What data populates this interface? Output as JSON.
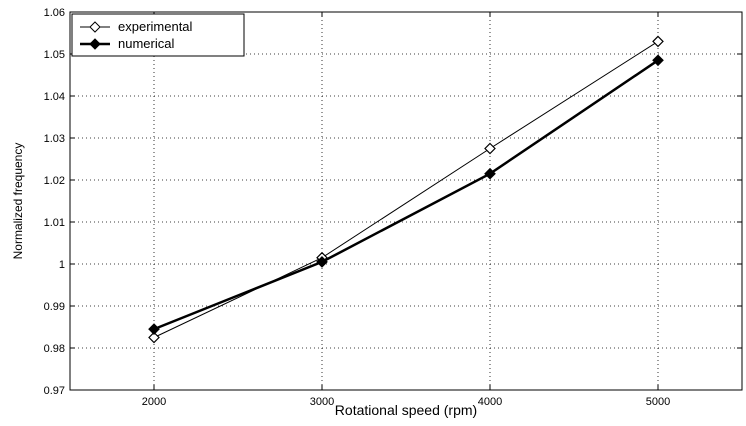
{
  "chart_data": {
    "type": "line",
    "title": "",
    "xlabel": "Rotational speed (rpm)",
    "ylabel": "Normalized frequency",
    "xlim": [
      1500,
      5500
    ],
    "ylim": [
      0.97,
      1.06
    ],
    "x_ticks": [
      2000,
      3000,
      4000,
      5000
    ],
    "x_tick_labels": [
      "2000",
      "3000",
      "4000",
      "5000"
    ],
    "y_ticks": [
      0.97,
      0.98,
      0.99,
      1.0,
      1.01,
      1.02,
      1.03,
      1.04,
      1.05,
      1.06
    ],
    "y_tick_labels": [
      "0.97",
      "0.98",
      "0.99",
      "1",
      "1.01",
      "1.02",
      "1.03",
      "1.04",
      "1.05",
      "1.06"
    ],
    "grid": true,
    "legend_position": "top-left",
    "series": [
      {
        "name": "experimental",
        "x": [
          2000,
          3000,
          4000,
          5000
        ],
        "values": [
          0.9825,
          1.0015,
          1.0275,
          1.053
        ],
        "color": "#000000",
        "marker": "open-diamond",
        "line": "thin"
      },
      {
        "name": "numerical",
        "x": [
          2000,
          3000,
          4000,
          5000
        ],
        "values": [
          0.9845,
          1.0005,
          1.0215,
          1.0485
        ],
        "color": "#000000",
        "marker": "filled-diamond",
        "line": "thick"
      }
    ]
  }
}
